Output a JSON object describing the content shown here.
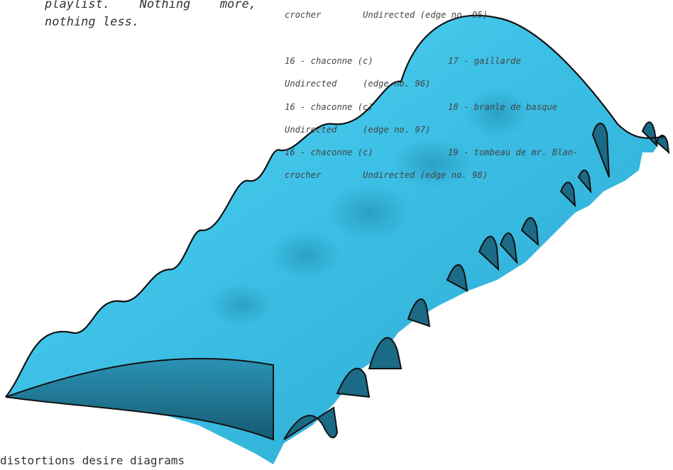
{
  "intro": {
    "line1": "playlist.   Nothing  more,",
    "line2": "nothing less."
  },
  "edges": [
    {
      "first": "crocher",
      "second": "Undirected  (edge no. 95)"
    },
    {
      "first": "16 - chaconne (c)",
      "second": "17 - gaillarde"
    },
    {
      "first": "Undirected",
      "second": "(edge no. 96)"
    },
    {
      "first": "16 - chaconne (c)",
      "second": "18 - branle de basque"
    },
    {
      "first": "Undirected",
      "second": "(edge no. 97)"
    },
    {
      "first": "16 - chaconne (c)",
      "second": "19 - tombeau de mr. Blan-"
    },
    {
      "first": "crocher",
      "second": "Undirected  (edge no. 98)"
    }
  ],
  "footer": {
    "caption": "distortions desire diagrams"
  },
  "surface": {
    "fill_light": "#4fd2f2",
    "fill_mid": "#34b3da",
    "fill_dark": "#1d6f8a",
    "outline": "#111111"
  }
}
